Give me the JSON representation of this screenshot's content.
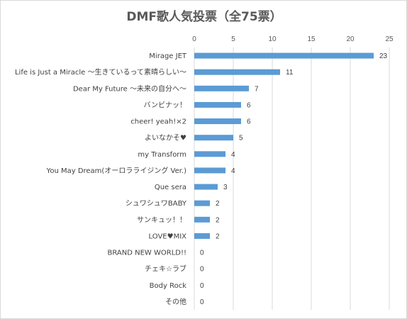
{
  "chart_data": {
    "type": "bar",
    "orientation": "horizontal",
    "title": "DMF歌人気投票（全75票）",
    "categories": [
      "Mirage JET",
      "Life is Just a Miracle 〜生きているって素晴らしい〜",
      "Dear My Future 〜未来の自分へ〜",
      "バンビナッ！",
      "cheer! yeah!×2",
      "よいなかそ♥",
      "my Transform",
      "You May Dream(オーロラライジング Ver.)",
      "Que sera",
      "シュワシュワBABY",
      "サンキュッ！！",
      "LOVE♥MIX",
      "BRAND NEW WORLD!!",
      "チェキ☆ラブ",
      "Body Rock",
      "その他"
    ],
    "values": [
      23,
      11,
      7,
      6,
      6,
      5,
      4,
      4,
      3,
      2,
      2,
      2,
      0,
      0,
      0,
      0
    ],
    "xlim": [
      0,
      25
    ],
    "xticks": [
      0,
      5,
      10,
      15,
      20,
      25
    ],
    "axis_position": "top",
    "grid": true,
    "data_labels": true,
    "bar_color": "#5b9bd5",
    "gridline_color": "#d9d9d9"
  }
}
